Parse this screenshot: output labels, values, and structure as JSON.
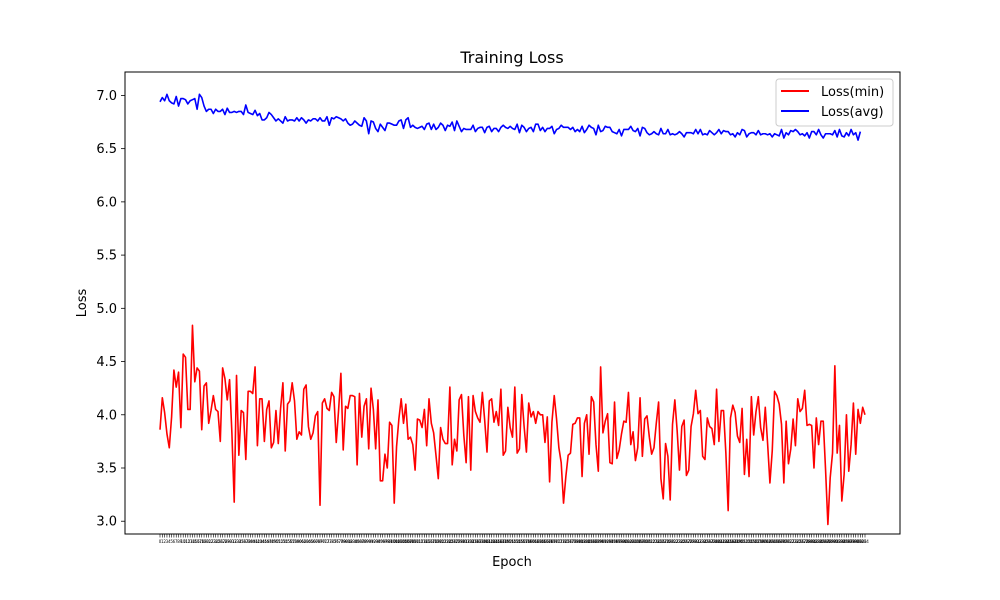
{
  "chart_data": {
    "type": "line",
    "title": "Training Loss",
    "xlabel": "Epoch",
    "ylabel": "Loss",
    "ylim": [
      2.88,
      7.22
    ],
    "yticks": [
      3.0,
      3.5,
      4.0,
      4.5,
      5.0,
      5.5,
      6.0,
      6.5,
      7.0
    ],
    "ytick_labels": [
      "3.0",
      "3.5",
      "4.0",
      "4.5",
      "5.0",
      "5.5",
      "6.0",
      "6.5",
      "7.0"
    ],
    "x_start": 0,
    "x_end": 299,
    "legend_position": "upper right",
    "grid": false,
    "series": [
      {
        "name": "Loss(min)",
        "color": "#ff0000",
        "values": [
          3.86,
          4.16,
          4.02,
          3.82,
          3.69,
          3.98,
          4.42,
          4.26,
          4.4,
          3.88,
          4.57,
          4.54,
          4.05,
          4.05,
          4.84,
          4.31,
          4.44,
          4.41,
          3.86,
          4.27,
          4.3,
          3.92,
          4.04,
          4.18,
          4.05,
          4.03,
          3.75,
          4.44,
          4.34,
          4.14,
          4.33,
          3.83,
          3.18,
          4.37,
          3.62,
          4.04,
          4.02,
          3.58,
          4.22,
          4.22,
          4.2,
          4.45,
          3.71,
          4.15,
          4.15,
          3.75,
          4.05,
          4.13,
          3.69,
          3.74,
          4.04,
          3.73,
          4.06,
          4.3,
          3.66,
          4.1,
          4.13,
          4.3,
          4.13,
          3.77,
          3.84,
          3.81,
          4.24,
          4.28,
          3.89,
          3.77,
          3.83,
          3.99,
          4.03,
          3.15,
          4.11,
          4.15,
          4.06,
          4.04,
          4.21,
          4.17,
          3.74,
          4.04,
          4.39,
          3.67,
          4.08,
          4.06,
          4.18,
          4.18,
          4.17,
          3.53,
          4.2,
          3.79,
          4.08,
          4.15,
          3.68,
          4.25,
          4.05,
          3.68,
          4.14,
          3.38,
          3.38,
          3.63,
          3.5,
          3.93,
          3.9,
          3.17,
          3.7,
          3.96,
          4.15,
          3.92,
          4.1,
          3.77,
          3.79,
          3.72,
          3.48,
          3.96,
          3.95,
          3.88,
          4.05,
          3.71,
          4.15,
          3.92,
          3.83,
          3.62,
          3.4,
          3.88,
          3.77,
          3.73,
          3.73,
          4.26,
          3.53,
          3.77,
          3.66,
          4.14,
          4.19,
          3.81,
          3.55,
          4.17,
          3.48,
          4.18,
          4.03,
          3.97,
          3.93,
          4.21,
          3.95,
          3.65,
          4.13,
          4.15,
          3.93,
          4.03,
          3.9,
          4.24,
          3.62,
          3.66,
          4.07,
          3.88,
          3.79,
          4.26,
          3.64,
          3.68,
          4.19,
          3.89,
          3.65,
          4.11,
          3.98,
          4.03,
          3.92,
          4.03,
          4.0,
          4.0,
          3.74,
          3.98,
          3.37,
          3.93,
          4.18,
          3.96,
          3.69,
          3.55,
          3.17,
          3.42,
          3.62,
          3.64,
          3.91,
          3.92,
          3.97,
          3.97,
          3.42,
          3.92,
          4.0,
          3.63,
          4.17,
          4.12,
          3.72,
          3.47,
          4.45,
          3.83,
          3.94,
          4.01,
          3.55,
          3.54,
          4.12,
          3.59,
          3.67,
          3.82,
          3.94,
          3.93,
          4.21,
          3.72,
          3.84,
          3.57,
          3.69,
          4.16,
          3.61,
          3.96,
          3.99,
          3.79,
          3.63,
          3.69,
          3.92,
          4.12,
          3.4,
          3.21,
          3.73,
          3.61,
          3.2,
          3.91,
          4.14,
          3.85,
          3.48,
          3.89,
          3.95,
          3.43,
          3.48,
          3.89,
          4.01,
          4.23,
          4.01,
          4.04,
          3.61,
          3.58,
          3.97,
          3.89,
          3.87,
          3.72,
          4.24,
          3.75,
          4.04,
          4.04,
          3.64,
          3.1,
          3.97,
          4.09,
          4.02,
          3.8,
          3.74,
          4.06,
          3.44,
          3.77,
          3.42,
          4.17,
          3.81,
          4.03,
          4.17,
          3.88,
          3.76,
          4.07,
          3.73,
          3.36,
          3.66,
          4.22,
          4.18,
          4.1,
          3.91,
          3.36,
          3.94,
          3.54,
          3.68,
          3.96,
          3.71,
          4.15,
          4.03,
          4.06,
          4.23,
          3.9,
          3.91,
          3.9,
          3.5,
          3.97,
          3.72,
          3.94,
          3.94,
          3.48,
          2.97,
          3.41,
          3.64,
          4.46,
          3.64,
          3.9,
          3.19,
          3.44,
          4.0,
          3.47,
          3.72,
          4.11,
          3.63,
          4.05,
          3.92,
          4.07,
          4.0
        ]
      },
      {
        "name": "Loss(avg)",
        "color": "#0000ff",
        "values": [
          6.94,
          6.98,
          6.95,
          7.01,
          6.95,
          6.93,
          6.92,
          6.99,
          6.9,
          6.97,
          6.97,
          6.96,
          6.92,
          6.95,
          6.96,
          6.97,
          6.87,
          7.01,
          6.98,
          6.9,
          6.85,
          6.87,
          6.87,
          6.83,
          6.87,
          6.85,
          6.85,
          6.87,
          6.82,
          6.88,
          6.84,
          6.84,
          6.85,
          6.84,
          6.85,
          6.85,
          6.82,
          6.91,
          6.84,
          6.83,
          6.82,
          6.86,
          6.81,
          6.83,
          6.77,
          6.77,
          6.79,
          6.84,
          6.82,
          6.79,
          6.76,
          6.78,
          6.76,
          6.74,
          6.8,
          6.76,
          6.77,
          6.77,
          6.76,
          6.79,
          6.76,
          6.79,
          6.77,
          6.74,
          6.77,
          6.76,
          6.78,
          6.78,
          6.76,
          6.79,
          6.76,
          6.76,
          6.8,
          6.72,
          6.79,
          6.78,
          6.8,
          6.79,
          6.78,
          6.76,
          6.78,
          6.74,
          6.72,
          6.73,
          6.76,
          6.74,
          6.72,
          6.71,
          6.79,
          6.76,
          6.64,
          6.76,
          6.75,
          6.69,
          6.66,
          6.73,
          6.7,
          6.67,
          6.74,
          6.74,
          6.73,
          6.72,
          6.72,
          6.76,
          6.77,
          6.69,
          6.77,
          6.79,
          6.7,
          6.72,
          6.7,
          6.69,
          6.7,
          6.71,
          6.68,
          6.73,
          6.74,
          6.68,
          6.73,
          6.68,
          6.7,
          6.74,
          6.72,
          6.67,
          6.72,
          6.71,
          6.75,
          6.67,
          6.76,
          6.71,
          6.66,
          6.69,
          6.68,
          6.68,
          6.68,
          6.72,
          6.66,
          6.69,
          6.7,
          6.7,
          6.65,
          6.7,
          6.71,
          6.66,
          6.69,
          6.69,
          6.66,
          6.7,
          6.72,
          6.7,
          6.69,
          6.71,
          6.69,
          6.68,
          6.73,
          6.65,
          6.72,
          6.7,
          6.66,
          6.69,
          6.7,
          6.66,
          6.73,
          6.73,
          6.67,
          6.7,
          6.66,
          6.69,
          6.69,
          6.71,
          6.64,
          6.68,
          6.69,
          6.72,
          6.7,
          6.7,
          6.7,
          6.68,
          6.7,
          6.66,
          6.68,
          6.66,
          6.71,
          6.65,
          6.68,
          6.72,
          6.7,
          6.69,
          6.63,
          6.72,
          6.66,
          6.67,
          6.71,
          6.7,
          6.7,
          6.66,
          6.65,
          6.64,
          6.68,
          6.62,
          6.68,
          6.68,
          6.68,
          6.71,
          6.67,
          6.66,
          6.69,
          6.62,
          6.7,
          6.69,
          6.65,
          6.63,
          6.64,
          6.66,
          6.64,
          6.63,
          6.69,
          6.64,
          6.64,
          6.68,
          6.63,
          6.64,
          6.63,
          6.64,
          6.66,
          6.64,
          6.61,
          6.65,
          6.65,
          6.65,
          6.64,
          6.68,
          6.64,
          6.68,
          6.63,
          6.64,
          6.63,
          6.67,
          6.65,
          6.63,
          6.65,
          6.68,
          6.64,
          6.67,
          6.66,
          6.66,
          6.63,
          6.64,
          6.61,
          6.65,
          6.63,
          6.68,
          6.67,
          6.61,
          6.64,
          6.65,
          6.65,
          6.63,
          6.67,
          6.63,
          6.64,
          6.64,
          6.63,
          6.64,
          6.61,
          6.64,
          6.63,
          6.62,
          6.68,
          6.6,
          6.65,
          6.63,
          6.67,
          6.66,
          6.68,
          6.66,
          6.63,
          6.64,
          6.62,
          6.65,
          6.6,
          6.66,
          6.66,
          6.63,
          6.68,
          6.63,
          6.6,
          6.64,
          6.64,
          6.64,
          6.63,
          6.67,
          6.61,
          6.68,
          6.62,
          6.61,
          6.65,
          6.62,
          6.68,
          6.63,
          6.65,
          6.58,
          6.66
        ]
      }
    ]
  }
}
